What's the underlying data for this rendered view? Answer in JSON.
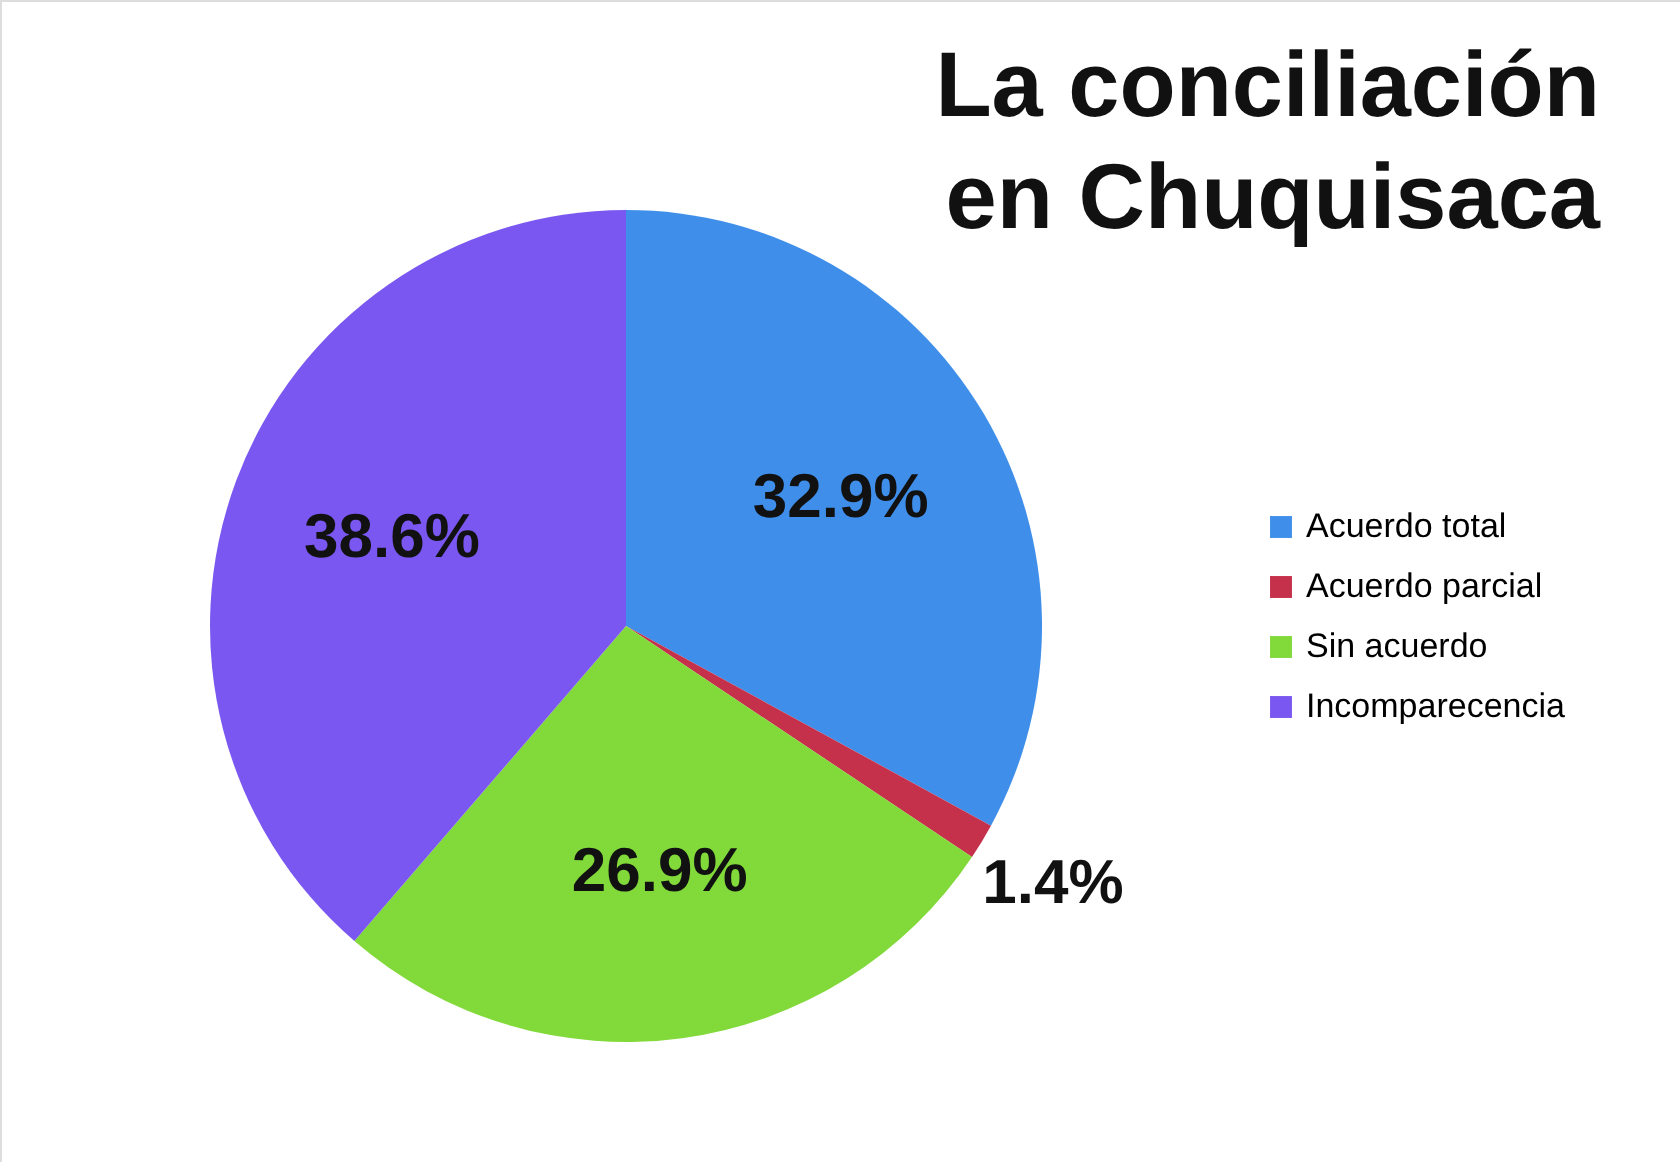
{
  "chart_data": {
    "type": "pie",
    "title": "La conciliación\nen Chuquisaca",
    "categories": [
      "Acuerdo total",
      "Acuerdo parcial",
      "Sin acuerdo",
      "Incomparecencia"
    ],
    "values": [
      32.9,
      1.4,
      26.9,
      38.6
    ],
    "value_labels": [
      "32.9%",
      "1.4%",
      "26.9%",
      "38.6%"
    ],
    "colors": [
      "#3f8fea",
      "#c5304b",
      "#82d93a",
      "#7a57f0"
    ],
    "legend": "right"
  }
}
